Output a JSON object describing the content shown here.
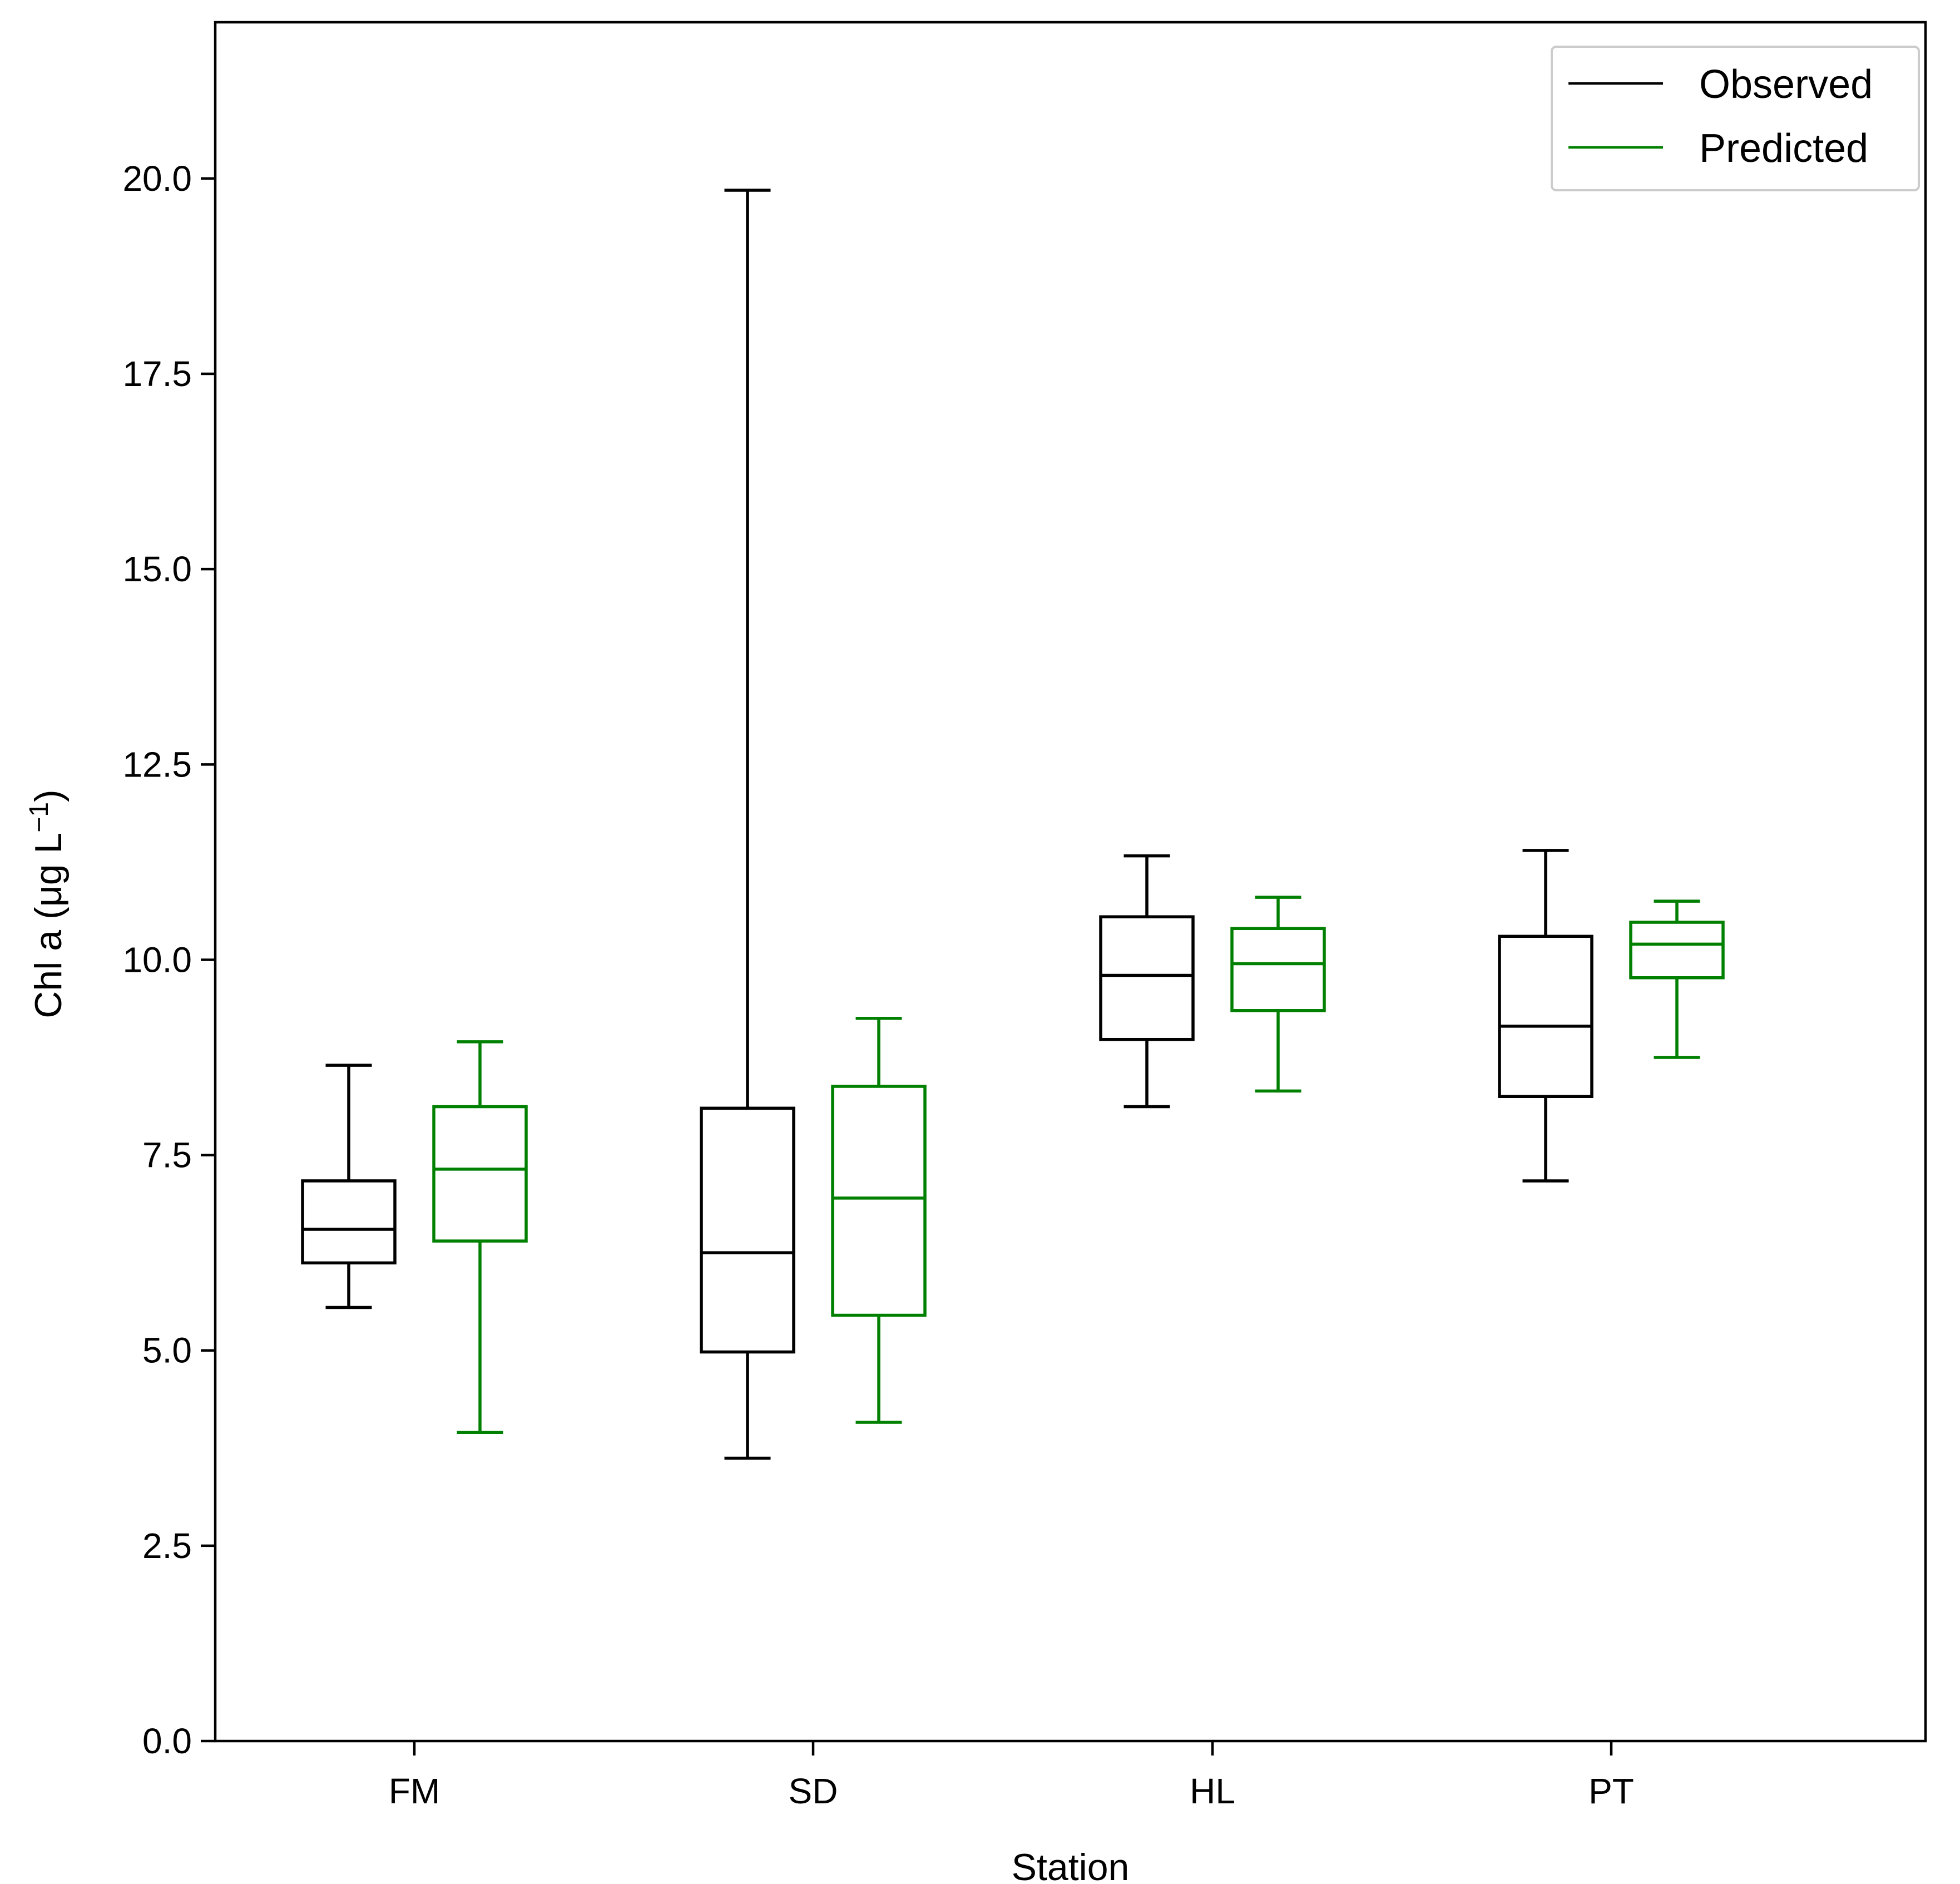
{
  "chart_data": {
    "type": "boxplot",
    "title": "",
    "xlabel": "Station",
    "ylabel": {
      "main": "Chl a (μg L",
      "superscript": "−1",
      "close": ")"
    },
    "ylim": [
      0,
      22
    ],
    "yticks": [
      0.0,
      2.5,
      5.0,
      7.5,
      10.0,
      12.5,
      15.0,
      17.5,
      20.0
    ],
    "ytick_labels": [
      "0.0",
      "2.5",
      "5.0",
      "7.5",
      "10.0",
      "12.5",
      "15.0",
      "17.5",
      "20.0"
    ],
    "categories": [
      "FM",
      "SD",
      "HL",
      "PT"
    ],
    "grid": false,
    "legend_position": "top-right",
    "series": [
      {
        "name": "Observed",
        "color": "#000000",
        "boxes": [
          {
            "category": "FM",
            "whislo": 5.55,
            "q1": 6.12,
            "med": 6.55,
            "q3": 7.17,
            "whishi": 8.65
          },
          {
            "category": "SD",
            "whislo": 3.62,
            "q1": 4.98,
            "med": 6.25,
            "q3": 8.1,
            "whishi": 19.85
          },
          {
            "category": "HL",
            "whislo": 8.12,
            "q1": 8.98,
            "med": 9.8,
            "q3": 10.55,
            "whishi": 11.33
          },
          {
            "category": "PT",
            "whislo": 7.17,
            "q1": 8.25,
            "med": 9.15,
            "q3": 10.3,
            "whishi": 11.4
          }
        ]
      },
      {
        "name": "Predicted",
        "color": "#008000",
        "boxes": [
          {
            "category": "FM",
            "whislo": 3.95,
            "q1": 6.4,
            "med": 7.32,
            "q3": 8.12,
            "whishi": 8.95
          },
          {
            "category": "SD",
            "whislo": 4.08,
            "q1": 5.45,
            "med": 6.95,
            "q3": 8.38,
            "whishi": 9.25
          },
          {
            "category": "HL",
            "whislo": 8.32,
            "q1": 9.35,
            "med": 9.95,
            "q3": 10.4,
            "whishi": 10.8
          },
          {
            "category": "PT",
            "whislo": 8.75,
            "q1": 9.77,
            "med": 10.2,
            "q3": 10.48,
            "whishi": 10.75
          }
        ]
      }
    ]
  }
}
